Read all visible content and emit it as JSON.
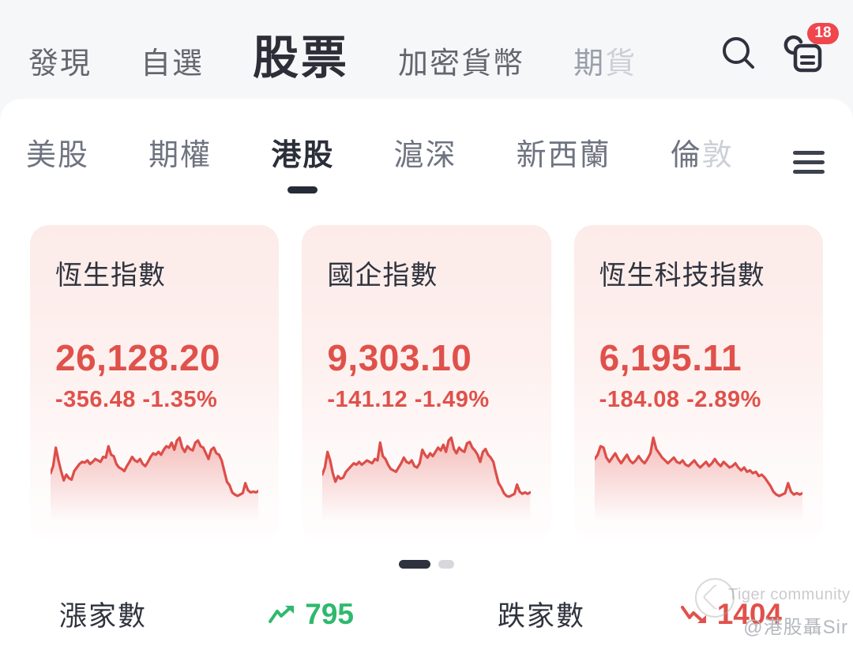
{
  "top_nav": {
    "items": [
      {
        "label": "發現"
      },
      {
        "label": "自選"
      },
      {
        "label": "股票",
        "active": true
      },
      {
        "label": "加密貨幣"
      },
      {
        "label_main": "期",
        "label_faded": "貨"
      }
    ],
    "badge_count": "18",
    "icons": {
      "search": "search-icon",
      "news": "news-feed-icon"
    }
  },
  "market_tabs": {
    "items": [
      {
        "label": "美股"
      },
      {
        "label": "期權"
      },
      {
        "label": "港股",
        "active": true
      },
      {
        "label": "滬深"
      },
      {
        "label": "新西蘭"
      },
      {
        "label_main": "倫",
        "label_faded": "敦"
      }
    ],
    "menu_icon": "menu-icon"
  },
  "cards": [
    {
      "name": "恆生指數",
      "price": "26,128.20",
      "change": "-356.48 -1.35%",
      "sparkline": [
        42,
        52,
        78,
        60,
        45,
        32,
        40,
        35,
        33,
        45,
        50,
        55,
        58,
        57,
        60,
        55,
        58,
        62,
        60,
        58,
        65,
        64,
        80,
        68,
        66,
        55,
        50,
        48,
        45,
        52,
        58,
        65,
        60,
        58,
        62,
        55,
        52,
        58,
        65,
        70,
        68,
        72,
        68,
        75,
        80,
        78,
        85,
        75,
        88,
        92,
        78,
        72,
        80,
        76,
        74,
        85,
        88,
        80,
        78,
        70,
        62,
        75,
        78,
        70,
        68,
        60,
        45,
        30,
        25,
        15,
        12,
        10,
        12,
        14,
        28,
        18,
        15,
        16,
        15,
        17
      ]
    },
    {
      "name": "國企指數",
      "price": "9,303.10",
      "change": "-141.12 -1.49%",
      "sparkline": [
        40,
        50,
        72,
        60,
        42,
        30,
        38,
        34,
        36,
        44,
        48,
        52,
        56,
        54,
        58,
        54,
        57,
        60,
        58,
        56,
        62,
        60,
        85,
        66,
        62,
        54,
        48,
        46,
        44,
        50,
        56,
        64,
        58,
        56,
        60,
        52,
        50,
        56,
        75,
        68,
        64,
        70,
        66,
        72,
        78,
        74,
        82,
        72,
        88,
        92,
        76,
        70,
        78,
        74,
        72,
        84,
        86,
        78,
        74,
        68,
        58,
        72,
        76,
        68,
        64,
        58,
        42,
        28,
        22,
        14,
        10,
        9,
        11,
        13,
        26,
        16,
        13,
        15,
        13,
        15
      ]
    },
    {
      "name": "恆生科技指數",
      "price": "6,195.11",
      "change": "-184.08 -2.89%",
      "sparkline": [
        62,
        68,
        80,
        78,
        64,
        58,
        64,
        70,
        62,
        56,
        62,
        68,
        60,
        56,
        60,
        66,
        60,
        56,
        62,
        70,
        92,
        76,
        70,
        64,
        60,
        56,
        60,
        64,
        58,
        56,
        60,
        54,
        52,
        56,
        60,
        54,
        50,
        54,
        58,
        52,
        56,
        62,
        56,
        52,
        58,
        54,
        50,
        52,
        56,
        50,
        46,
        50,
        44,
        46,
        42,
        44,
        38,
        40,
        36,
        30,
        24,
        16,
        12,
        10,
        12,
        14,
        28,
        16,
        12,
        14,
        12,
        14
      ]
    }
  ],
  "chart_data": [
    {
      "type": "area",
      "title": "恆生指數",
      "last_value": 26128.2,
      "change": -356.48,
      "change_pct": -1.35,
      "trend": "down"
    },
    {
      "type": "area",
      "title": "國企指數",
      "last_value": 9303.1,
      "change": -141.12,
      "change_pct": -1.49,
      "trend": "down"
    },
    {
      "type": "area",
      "title": "恆生科技指數",
      "last_value": 6195.11,
      "change": -184.08,
      "change_pct": -2.89,
      "trend": "down"
    }
  ],
  "pagination": {
    "active_index": 0,
    "count": 2
  },
  "stats": {
    "up_label": "漲家數",
    "up_value": "795",
    "down_label": "跌家數",
    "down_value": "1404",
    "up_icon": "trend-up-icon",
    "down_icon": "trend-down-icon"
  },
  "watermark": {
    "brand": "Tiger community",
    "author": "@港股聶Sir"
  },
  "colors": {
    "red": "#e0514b",
    "green": "#2fb96d",
    "dark": "#2f333e",
    "badge": "#f0474d",
    "card_bg_top": "#fcebe9"
  }
}
